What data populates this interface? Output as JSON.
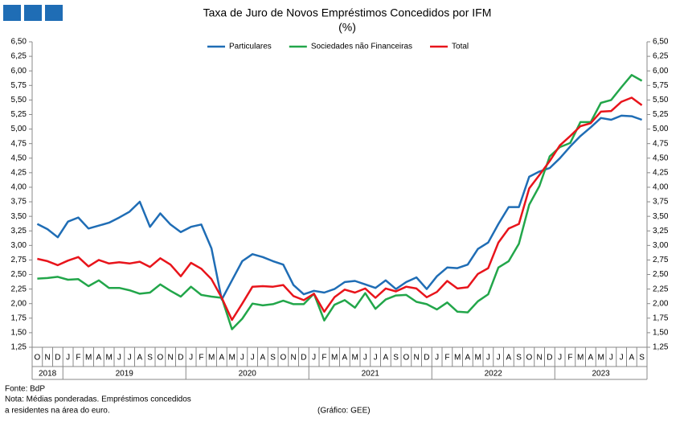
{
  "chart_data": {
    "type": "line",
    "title": "Taxa de Juro de Novos Empréstimos  Concedidos por IFM",
    "subtitle": "(%)",
    "categories": [
      "O",
      "N",
      "D",
      "J",
      "F",
      "M",
      "A",
      "M",
      "J",
      "J",
      "A",
      "S",
      "O",
      "N",
      "D",
      "J",
      "F",
      "M",
      "A",
      "M",
      "J",
      "J",
      "A",
      "S",
      "O",
      "N",
      "D",
      "J",
      "F",
      "M",
      "A",
      "M",
      "J",
      "J",
      "A",
      "S",
      "O",
      "N",
      "D",
      "J",
      "F",
      "M",
      "A",
      "M",
      "J",
      "J",
      "A",
      "S",
      "O",
      "N",
      "D",
      "J",
      "F",
      "M",
      "A",
      "M",
      "J",
      "J",
      "A",
      "S"
    ],
    "years": [
      "2018",
      "2019",
      "2020",
      "2021",
      "2022",
      "2023"
    ],
    "series": [
      {
        "name": "Particulares",
        "color": "#1f6db5",
        "values": [
          3.37,
          3.28,
          3.14,
          3.41,
          3.48,
          3.29,
          3.34,
          3.39,
          3.48,
          3.58,
          3.75,
          3.32,
          3.55,
          3.36,
          3.23,
          3.32,
          3.36,
          2.95,
          2.07,
          2.4,
          2.73,
          2.85,
          2.8,
          2.73,
          2.67,
          2.32,
          2.16,
          2.22,
          2.19,
          2.25,
          2.37,
          2.39,
          2.33,
          2.27,
          2.4,
          2.25,
          2.37,
          2.45,
          2.25,
          2.47,
          2.62,
          2.61,
          2.67,
          2.94,
          3.05,
          3.37,
          3.66,
          3.66,
          4.18,
          4.27,
          4.33,
          4.5,
          4.7,
          4.88,
          5.03,
          5.19,
          5.16,
          5.23,
          5.22,
          5.16
        ]
      },
      {
        "name": "Sociedades não Financeiras",
        "color": "#22a64a",
        "values": [
          2.43,
          2.44,
          2.46,
          2.41,
          2.42,
          2.3,
          2.4,
          2.27,
          2.27,
          2.23,
          2.17,
          2.19,
          2.33,
          2.22,
          2.12,
          2.29,
          2.15,
          2.12,
          2.1,
          1.56,
          1.74,
          2.0,
          1.97,
          1.99,
          2.05,
          1.99,
          1.99,
          2.17,
          1.71,
          1.98,
          2.06,
          1.93,
          2.18,
          1.91,
          2.07,
          2.14,
          2.15,
          2.03,
          1.99,
          1.9,
          2.02,
          1.86,
          1.85,
          2.04,
          2.16,
          2.62,
          2.73,
          3.03,
          3.7,
          4.02,
          4.53,
          4.69,
          4.76,
          5.12,
          5.12,
          5.45,
          5.5,
          5.72,
          5.93,
          5.83
        ]
      },
      {
        "name": "Total",
        "color": "#e8141b",
        "values": [
          2.77,
          2.73,
          2.66,
          2.74,
          2.8,
          2.64,
          2.75,
          2.69,
          2.71,
          2.69,
          2.72,
          2.63,
          2.78,
          2.67,
          2.47,
          2.7,
          2.6,
          2.42,
          2.1,
          1.72,
          2.0,
          2.29,
          2.3,
          2.29,
          2.32,
          2.13,
          2.06,
          2.17,
          1.86,
          2.11,
          2.24,
          2.19,
          2.26,
          2.1,
          2.26,
          2.21,
          2.29,
          2.26,
          2.11,
          2.2,
          2.39,
          2.26,
          2.28,
          2.51,
          2.61,
          3.05,
          3.29,
          3.37,
          3.98,
          4.21,
          4.45,
          4.72,
          4.88,
          5.05,
          5.1,
          5.3,
          5.31,
          5.47,
          5.54,
          5.41
        ]
      }
    ],
    "ylim": [
      1.25,
      6.5
    ],
    "yticks": [
      {
        "value": 1.25,
        "label": "1,25"
      },
      {
        "value": 1.5,
        "label": "1,50"
      },
      {
        "value": 1.75,
        "label": "1,75"
      },
      {
        "value": 2,
        "label": "2,00"
      },
      {
        "value": 2.25,
        "label": "2,25"
      },
      {
        "value": 2.5,
        "label": "2,50"
      },
      {
        "value": 2.75,
        "label": "2,75"
      },
      {
        "value": 3,
        "label": "3,00"
      },
      {
        "value": 3.25,
        "label": "3,25"
      },
      {
        "value": 3.5,
        "label": "3,50"
      },
      {
        "value": 3.75,
        "label": "3,75"
      },
      {
        "value": 4,
        "label": "4,00"
      },
      {
        "value": 4.25,
        "label": "4,25"
      },
      {
        "value": 4.5,
        "label": "4,50"
      },
      {
        "value": 4.75,
        "label": "4,75"
      },
      {
        "value": 5,
        "label": "5,00"
      },
      {
        "value": 5.25,
        "label": "5,25"
      },
      {
        "value": 5.5,
        "label": "5,50"
      },
      {
        "value": 5.75,
        "label": "5,75"
      },
      {
        "value": 6,
        "label": "6,00"
      },
      {
        "value": 6.25,
        "label": "6,25"
      },
      {
        "value": 6.5,
        "label": "6,50"
      }
    ],
    "y2lim": [
      1.25,
      6.5
    ],
    "y2ticks": [
      {
        "value": 1.25,
        "label": "1,25"
      },
      {
        "value": 1.5,
        "label": "1,50"
      },
      {
        "value": 1.75,
        "label": "1,75"
      },
      {
        "value": 2,
        "label": "2,00"
      },
      {
        "value": 2.25,
        "label": "2,25"
      },
      {
        "value": 2.5,
        "label": "2,50"
      },
      {
        "value": 2.75,
        "label": "2,75"
      },
      {
        "value": 3,
        "label": "3,00"
      },
      {
        "value": 3.25,
        "label": "3,25"
      },
      {
        "value": 3.5,
        "label": "3,50"
      },
      {
        "value": 3.75,
        "label": "3,75"
      },
      {
        "value": 4,
        "label": "4,00"
      },
      {
        "value": 4.25,
        "label": "4,25"
      },
      {
        "value": 4.5,
        "label": "4,50"
      },
      {
        "value": 4.75,
        "label": "4,75"
      },
      {
        "value": 5,
        "label": "5,00"
      },
      {
        "value": 5.25,
        "label": "5,25"
      },
      {
        "value": 5.5,
        "label": "5,50"
      },
      {
        "value": 5.75,
        "label": "5,75"
      },
      {
        "value": 6,
        "label": "6,00"
      },
      {
        "value": 6.25,
        "label": "6,25"
      },
      {
        "value": 6.5,
        "label": "6,50"
      }
    ],
    "grid": false,
    "legend": "top",
    "source": "Fonte: BdP",
    "note": [
      "Nota: Médias ponderadas. Empréstimos concedidos",
      "a residentes na área do euro."
    ],
    "credit": "(Gráfico: GEE)"
  }
}
